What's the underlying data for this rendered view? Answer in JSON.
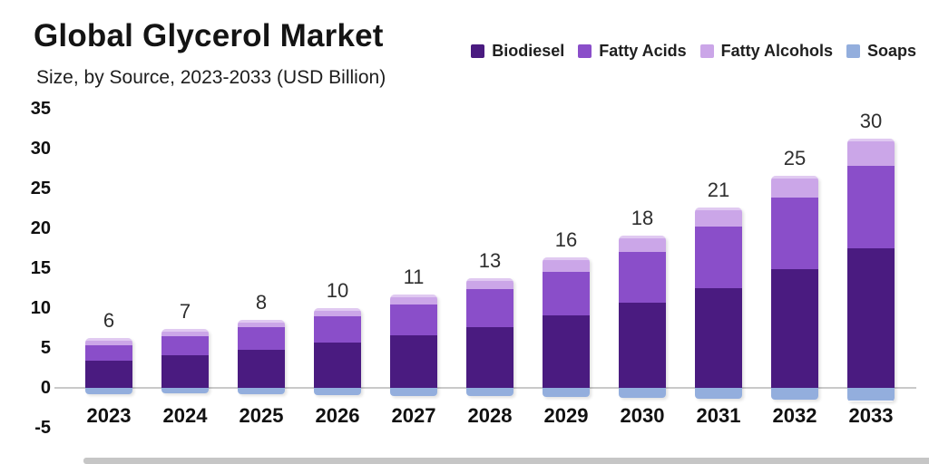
{
  "header": {
    "title": "Global Glycerol Market",
    "subtitle": "Size, by Source, 2023-2033 (USD Billion)"
  },
  "legend": {
    "items": [
      {
        "label": "Biodiesel",
        "color": "#4a1b80"
      },
      {
        "label": "Fatty Acids",
        "color": "#8a4ec9"
      },
      {
        "label": "Fatty Alcohols",
        "color": "#cba6e8"
      },
      {
        "label": "Soaps",
        "color": "#93aedd"
      }
    ]
  },
  "chart_data": {
    "type": "bar",
    "variant": "stacked-column",
    "title": "Global Glycerol Market",
    "subtitle": "Size, by Source, 2023-2033 (USD Billion)",
    "xlabel": "",
    "ylabel": "USD Billion",
    "categories": [
      "2023",
      "2024",
      "2025",
      "2026",
      "2027",
      "2028",
      "2029",
      "2030",
      "2031",
      "2032",
      "2033"
    ],
    "totals_labels": [
      6,
      7,
      8,
      10,
      11,
      13,
      16,
      18,
      21,
      25,
      30
    ],
    "series": [
      {
        "name": "Biodiesel",
        "color": "#4a1b80",
        "values": [
          3.5,
          4.1,
          4.8,
          5.7,
          6.6,
          7.6,
          9.1,
          10.7,
          12.5,
          14.9,
          17.6
        ]
      },
      {
        "name": "Fatty Acids",
        "color": "#8a4ec9",
        "values": [
          1.9,
          2.4,
          2.8,
          3.3,
          3.8,
          4.8,
          5.5,
          6.4,
          7.7,
          9.0,
          10.3
        ]
      },
      {
        "name": "Fatty Alcohols",
        "color": "#cba6e8",
        "values": [
          0.9,
          0.9,
          0.9,
          1.0,
          1.3,
          1.4,
          1.8,
          2.0,
          2.4,
          2.7,
          3.4
        ]
      },
      {
        "name": "Soaps",
        "color": "#93aedd",
        "below_axis": true,
        "values": [
          0.7,
          0.7,
          0.8,
          0.9,
          1.0,
          1.0,
          1.1,
          1.2,
          1.4,
          1.5,
          1.6
        ]
      }
    ],
    "y_ticks": [
      35,
      30,
      25,
      20,
      15,
      10,
      5,
      0,
      -5
    ],
    "ylim": [
      -5,
      35
    ],
    "grid": "zero-line-only",
    "legend_position": "top-right",
    "bar_style": "rounded-top, slight 3d bevel, soaps segment drawn below zero axis"
  }
}
